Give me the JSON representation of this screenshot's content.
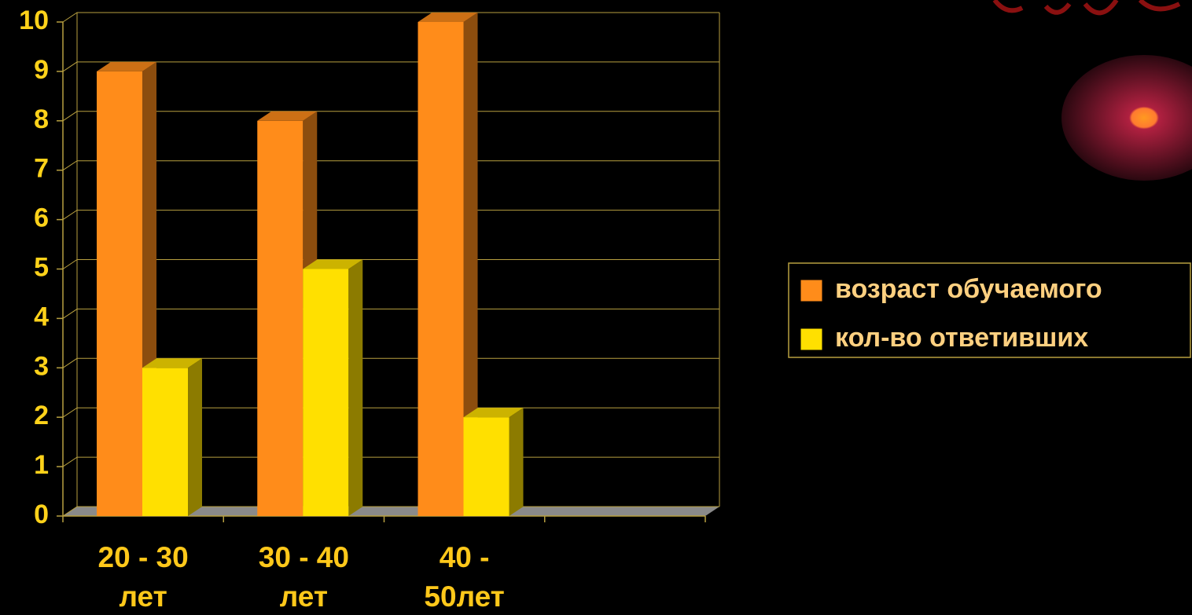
{
  "chart_data": {
    "type": "bar3d",
    "categories": [
      "20 - 30 лет",
      "30 - 40 лет",
      "40 - 50лет",
      null
    ],
    "series": [
      {
        "name": "возраст обучаемого",
        "color": "#ff8c1a",
        "values": [
          9,
          8,
          10,
          null
        ]
      },
      {
        "name": "кол-во ответивших",
        "color": "#ffe000",
        "values": [
          3,
          5,
          2,
          null
        ]
      }
    ],
    "ylim": [
      0,
      10
    ],
    "yticks": [
      0,
      1,
      2,
      3,
      4,
      5,
      6,
      7,
      8,
      9,
      10
    ],
    "grid": true,
    "legend": "right"
  }
}
